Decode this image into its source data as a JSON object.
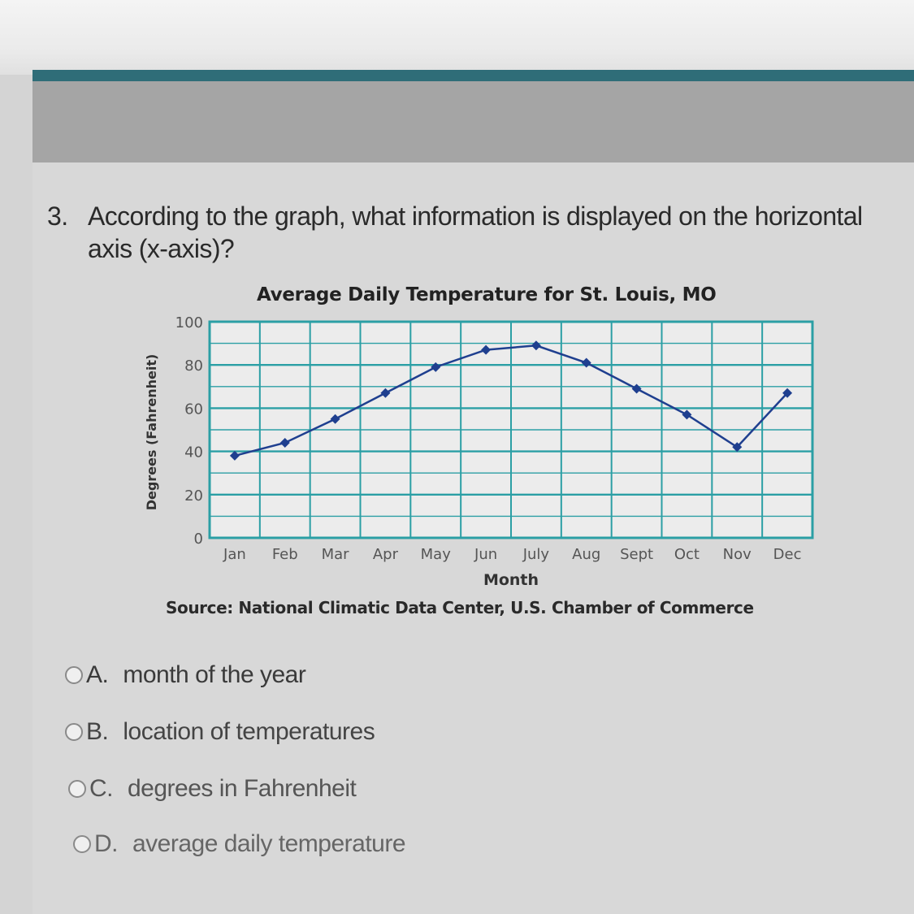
{
  "question": {
    "number": "3.",
    "text": "According to the graph, what information is displayed on the horizontal axis (x-axis)?"
  },
  "chart_data": {
    "type": "line",
    "title": "Average Daily Temperature for St. Louis, MO",
    "xlabel": "Month",
    "ylabel": "Degrees (Fahrenheit)",
    "source": "Source: National Climatic Data Center, U.S. Chamber of Commerce",
    "categories": [
      "Jan",
      "Feb",
      "Mar",
      "Apr",
      "May",
      "Jun",
      "July",
      "Aug",
      "Sept",
      "Oct",
      "Nov",
      "Dec"
    ],
    "values": [
      38,
      44,
      55,
      67,
      79,
      87,
      89,
      81,
      69,
      57,
      42,
      67
    ],
    "yticks": [
      0,
      20,
      40,
      60,
      80,
      100
    ],
    "ylim": [
      0,
      100
    ],
    "grid": true,
    "colors": {
      "line": "#1f3f8f",
      "grid": "#2b9fa5",
      "plot_bg": "#ececec"
    }
  },
  "choices": [
    {
      "letter": "A.",
      "text": "month of the year"
    },
    {
      "letter": "B.",
      "text": "location of temperatures"
    },
    {
      "letter": "C.",
      "text": "degrees in Fahrenheit"
    },
    {
      "letter": "D.",
      "text": "average daily temperature"
    }
  ]
}
